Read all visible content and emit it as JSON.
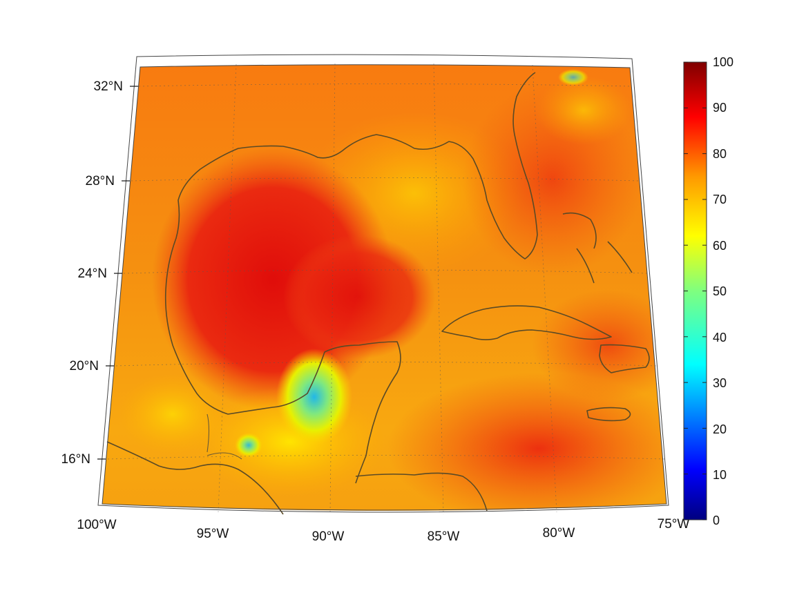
{
  "map": {
    "lat_ticks": [
      {
        "label": "32°N"
      },
      {
        "label": "28°N"
      },
      {
        "label": "24°N"
      },
      {
        "label": "20°N"
      },
      {
        "label": "16°N"
      }
    ],
    "lon_ticks": [
      {
        "label": "100°W"
      },
      {
        "label": "95°W"
      },
      {
        "label": "90°W"
      },
      {
        "label": "85°W"
      },
      {
        "label": "80°W"
      },
      {
        "label": "75°W"
      }
    ],
    "extent": {
      "lon_min": -100,
      "lon_max": -75,
      "lat_min": 14,
      "lat_max": 33
    },
    "coastline_color": "#5a4a26"
  },
  "colorbar": {
    "colormap": "jet",
    "min": 0,
    "max": 100,
    "labels": [
      "100",
      "90",
      "80",
      "70",
      "60",
      "50",
      "40",
      "30",
      "20",
      "10",
      "0"
    ],
    "colors": [
      "#00007f",
      "#0000ff",
      "#007fff",
      "#00ffff",
      "#7fff7f",
      "#ffff00",
      "#ff7f00",
      "#ff0000",
      "#7f0000"
    ]
  }
}
